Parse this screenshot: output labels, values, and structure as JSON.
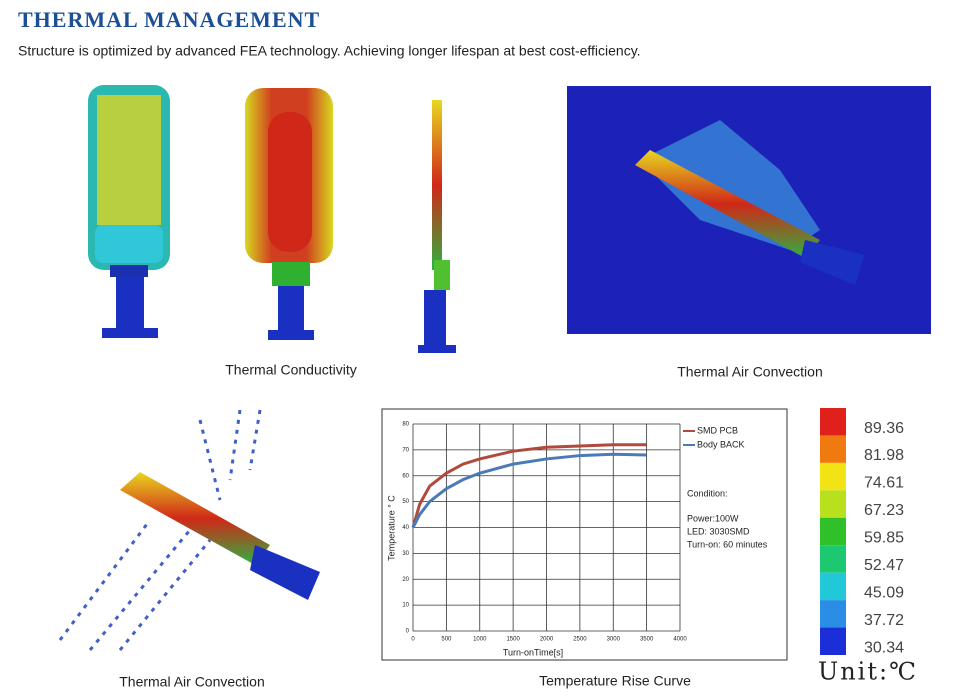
{
  "header": {
    "title": "THERMAL MANAGEMENT",
    "subtitle": "Structure is optimized by advanced FEA  technology. Achieving longer lifespan at best cost-efficiency."
  },
  "captions": [
    "Thermal Conductivity",
    "Thermal Air Convection",
    "Thermal Air Convection",
    "Temperature Rise Curve"
  ],
  "color_scale": {
    "values": [
      89.36,
      81.98,
      74.61,
      67.23,
      59.85,
      52.47,
      45.09,
      37.72,
      30.34
    ],
    "colors": [
      "#e0201a",
      "#f07a10",
      "#f2e414",
      "#b8e01c",
      "#2fc02a",
      "#1dc870",
      "#21c8d8",
      "#2a8ee6",
      "#1c2ed8"
    ],
    "unit": "Unit:℃"
  },
  "chart_data": {
    "type": "line",
    "x_label": "Turn-onTime[s]",
    "y_label": "Temperature ° C",
    "x": [
      0,
      100,
      250,
      500,
      750,
      1000,
      1500,
      2000,
      2500,
      3000,
      3500
    ],
    "series": [
      {
        "name": "SMD PCB",
        "color": "#b04a3c",
        "values": [
          40,
          49,
          56,
          61,
          64.5,
          66.5,
          69.5,
          71,
          71.5,
          72,
          72
        ]
      },
      {
        "name": "Body BACK",
        "color": "#4a7ab8",
        "values": [
          40,
          45,
          50,
          55,
          58.5,
          61,
          64.5,
          66.5,
          67.8,
          68.3,
          68
        ]
      }
    ],
    "xlim": [
      0,
      4000
    ],
    "xticks": [
      0,
      500,
      1000,
      1500,
      2000,
      2500,
      3000,
      3500,
      4000
    ],
    "ylim": [
      0,
      80
    ],
    "yticks": [
      0,
      10,
      20,
      30,
      40,
      50,
      60,
      70,
      80
    ],
    "grid": true,
    "annotations": [
      "Condition:",
      "Power:100W",
      "LED: 3030SMD",
      "Turn-on: 60 minutes"
    ]
  }
}
